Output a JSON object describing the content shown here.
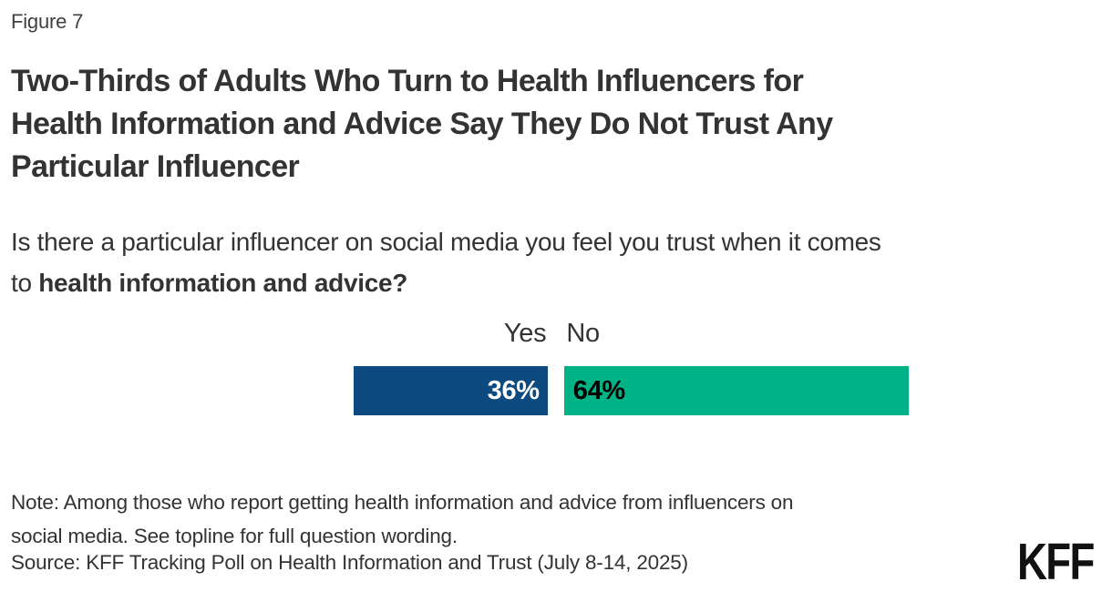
{
  "figure_label": "Figure 7",
  "title_lines": [
    "Two-Thirds of Adults Who Turn to Health Influencers for",
    "Health Information and Advice Say They Do Not Trust Any",
    "Particular Influencer"
  ],
  "subtitle": {
    "line1": "Is there a particular influencer on social media you feel you trust when it comes",
    "line2_regular": "to ",
    "line2_bold": "health information and advice?"
  },
  "note": "Note: Among those who report getting health information and advice from influencers on\nsocial media. See topline for full question wording.",
  "source": "Source: KFF Tracking Poll on Health Information and Trust (July 8-14, 2025)",
  "logo_text": "KFF",
  "colors": {
    "yes_bar": "#0D4A80",
    "no_bar": "#00B285",
    "yes_value_label": "#FFFFFF",
    "no_value_label": "#000000",
    "text": "#333333",
    "background": "#FFFFFF"
  },
  "chart_data": {
    "type": "bar",
    "orientation": "horizontal",
    "title": "Is there a particular influencer on social media you feel you trust when it comes to health information and advice?",
    "categories": [
      "Yes",
      "No"
    ],
    "values": [
      36,
      64
    ],
    "unit": "%",
    "xlim": [
      0,
      100
    ],
    "grid": false,
    "legend_position": "above-bars",
    "bars": [
      {
        "label": "Yes",
        "value": 36,
        "value_label": "36%",
        "color": "#0D4A80",
        "value_label_color": "#FFFFFF",
        "value_label_align": "right"
      },
      {
        "label": "No",
        "value": 64,
        "value_label": "64%",
        "color": "#00B285",
        "value_label_color": "#000000",
        "value_label_align": "left"
      }
    ]
  }
}
